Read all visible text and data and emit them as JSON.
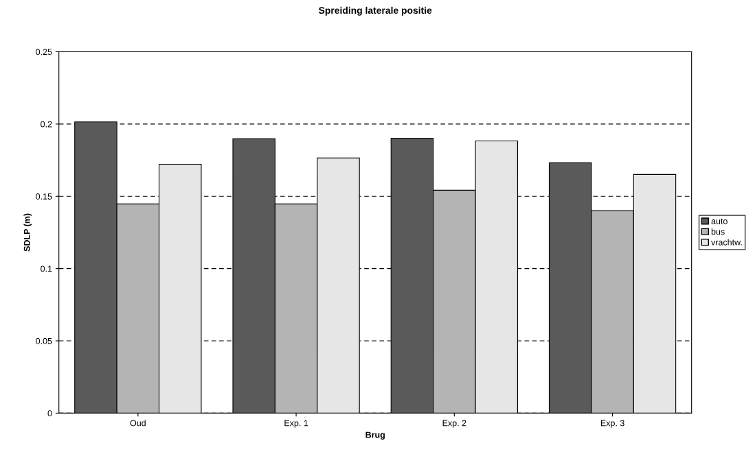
{
  "chart_data": {
    "type": "bar",
    "title": "Spreiding laterale positie",
    "xlabel": "Brug",
    "ylabel": "SDLP (m)",
    "categories": [
      "Oud",
      "Exp. 1",
      "Exp. 2",
      "Exp. 3"
    ],
    "series": [
      {
        "name": "auto",
        "color": "#5a5a5a",
        "values": [
          0.2015,
          0.1898,
          0.1902,
          0.1732
        ]
      },
      {
        "name": "bus",
        "color": "#b4b4b4",
        "values": [
          0.1447,
          0.1447,
          0.1542,
          0.14
        ]
      },
      {
        "name": "vrachtw.",
        "color": "#e6e6e6",
        "values": [
          0.1722,
          0.1765,
          0.1883,
          0.1651
        ]
      }
    ],
    "ylim": [
      0,
      0.25
    ],
    "yticks": [
      0,
      0.05,
      0.1,
      0.15,
      0.2,
      0.25
    ],
    "grid": "y",
    "legend": "right"
  }
}
